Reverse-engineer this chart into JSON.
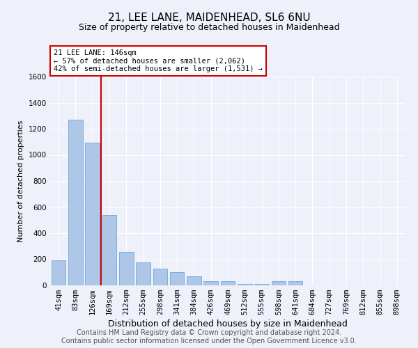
{
  "title": "21, LEE LANE, MAIDENHEAD, SL6 6NU",
  "subtitle": "Size of property relative to detached houses in Maidenhead",
  "xlabel": "Distribution of detached houses by size in Maidenhead",
  "ylabel": "Number of detached properties",
  "footer_line1": "Contains HM Land Registry data © Crown copyright and database right 2024.",
  "footer_line2": "Contains public sector information licensed under the Open Government Licence v3.0.",
  "categories": [
    "41sqm",
    "83sqm",
    "126sqm",
    "169sqm",
    "212sqm",
    "255sqm",
    "298sqm",
    "341sqm",
    "384sqm",
    "426sqm",
    "469sqm",
    "512sqm",
    "555sqm",
    "598sqm",
    "641sqm",
    "684sqm",
    "727sqm",
    "769sqm",
    "812sqm",
    "855sqm",
    "898sqm"
  ],
  "values": [
    190,
    1270,
    1095,
    540,
    255,
    175,
    130,
    100,
    70,
    30,
    30,
    10,
    10,
    30,
    30,
    0,
    0,
    0,
    0,
    0,
    0
  ],
  "bar_color": "#aec6e8",
  "bar_edge_color": "#5a9fd4",
  "red_line_x": 2.5,
  "annotation_title": "21 LEE LANE: 146sqm",
  "annotation_line1": "← 57% of detached houses are smaller (2,062)",
  "annotation_line2": "42% of semi-detached houses are larger (1,531) →",
  "annotation_box_color": "#ffffff",
  "annotation_box_edge_color": "#cc0000",
  "ylim": [
    0,
    1600
  ],
  "yticks": [
    0,
    200,
    400,
    600,
    800,
    1000,
    1200,
    1400,
    1600
  ],
  "background_color": "#eef0fa",
  "plot_background": "#eef0fa",
  "grid_color": "#ffffff",
  "title_fontsize": 11,
  "subtitle_fontsize": 9,
  "xlabel_fontsize": 9,
  "ylabel_fontsize": 8,
  "tick_fontsize": 7.5,
  "annot_fontsize": 7.5,
  "footer_fontsize": 7
}
